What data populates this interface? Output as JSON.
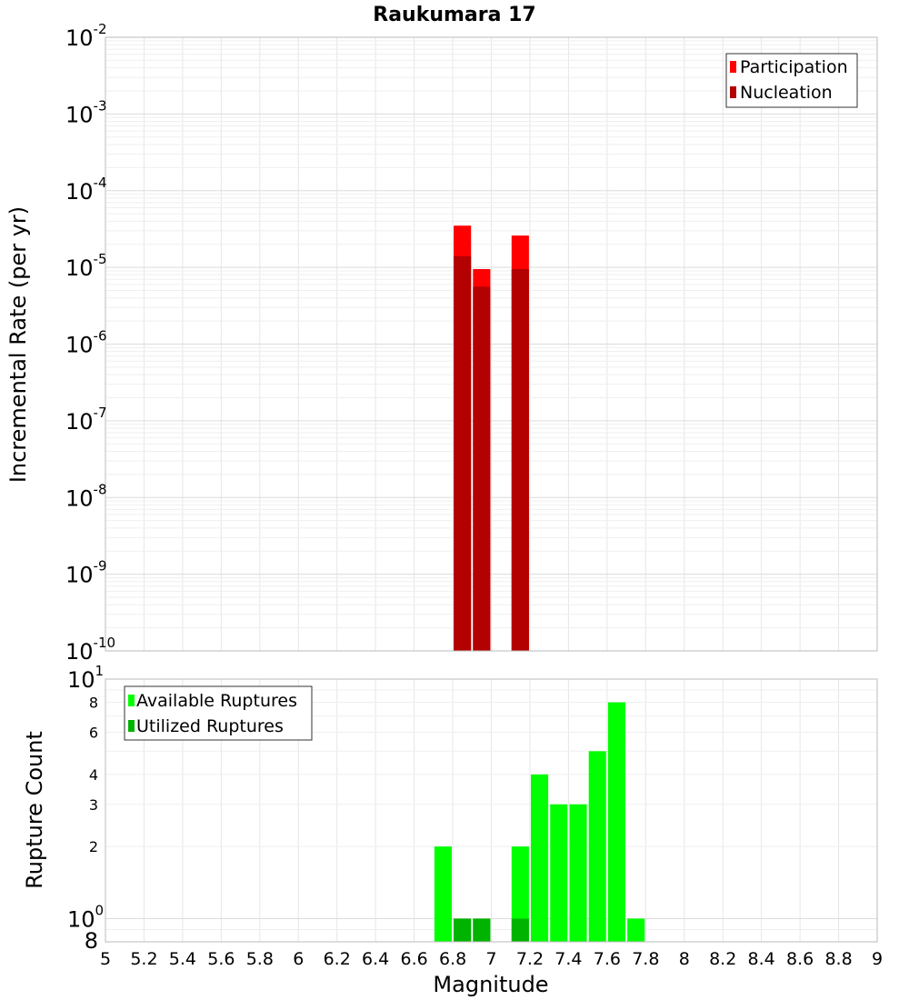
{
  "title": "Raukumara 17",
  "colors": {
    "participation": "#ff0000",
    "nucleation": "#b30000",
    "available": "#00ff00",
    "utilized": "#00b300",
    "grid": "#e6e6e6"
  },
  "chart_data": [
    {
      "type": "bar",
      "panel": "top",
      "ylabel": "Incremental Rate (per yr)",
      "xlabel": "",
      "yscale": "log",
      "xlim": [
        5,
        9
      ],
      "ylim": [
        1e-10,
        0.01
      ],
      "y_tick_exponents": [
        -10,
        -9,
        -8,
        -7,
        -6,
        -5,
        -4,
        -3,
        -2
      ],
      "legend": {
        "placement": "top-right",
        "entries": [
          "Participation",
          "Nucleation"
        ]
      },
      "bar_width": 0.09,
      "series": [
        {
          "name": "Participation",
          "x": [
            6.85,
            6.95,
            7.15
          ],
          "values": [
            3.5e-05,
            9.5e-06,
            2.6e-05
          ]
        },
        {
          "name": "Nucleation",
          "x": [
            6.85,
            6.95,
            7.15
          ],
          "values": [
            1.4e-05,
            5.6e-06,
            9.5e-06
          ]
        }
      ]
    },
    {
      "type": "bar",
      "panel": "bottom",
      "ylabel": "Rupture Count",
      "xlabel": "Magnitude",
      "yscale": "log",
      "xlim": [
        5,
        9
      ],
      "ylim": [
        0.8,
        10
      ],
      "major_ticks": [
        {
          "value": 1,
          "base": "10",
          "exp": "0"
        },
        {
          "value": 10,
          "base": "10",
          "exp": "1"
        }
      ],
      "minor_ticks": [
        {
          "value": 0.8,
          "label": "8"
        },
        {
          "value": 2,
          "label": "2"
        },
        {
          "value": 3,
          "label": "3"
        },
        {
          "value": 4,
          "label": "4"
        },
        {
          "value": 6,
          "label": "6"
        },
        {
          "value": 8,
          "label": "8"
        }
      ],
      "x_ticks": [
        "5",
        "5.2",
        "5.4",
        "5.6",
        "5.8",
        "6",
        "6.2",
        "6.4",
        "6.6",
        "6.8",
        "7",
        "7.2",
        "7.4",
        "7.6",
        "7.8",
        "8",
        "8.2",
        "8.4",
        "8.6",
        "8.8",
        "9"
      ],
      "legend": {
        "placement": "top-left",
        "entries": [
          "Available Ruptures",
          "Utilized Ruptures"
        ]
      },
      "bar_width": 0.09,
      "series": [
        {
          "name": "Available Ruptures",
          "x": [
            6.75,
            6.85,
            6.95,
            7.15,
            7.25,
            7.35,
            7.45,
            7.55,
            7.65,
            7.75
          ],
          "values": [
            2,
            1,
            1,
            2,
            4,
            3,
            3,
            5,
            8,
            1
          ]
        },
        {
          "name": "Utilized Ruptures",
          "x": [
            6.85,
            6.95,
            7.15
          ],
          "values": [
            1,
            1,
            1
          ]
        }
      ]
    }
  ]
}
